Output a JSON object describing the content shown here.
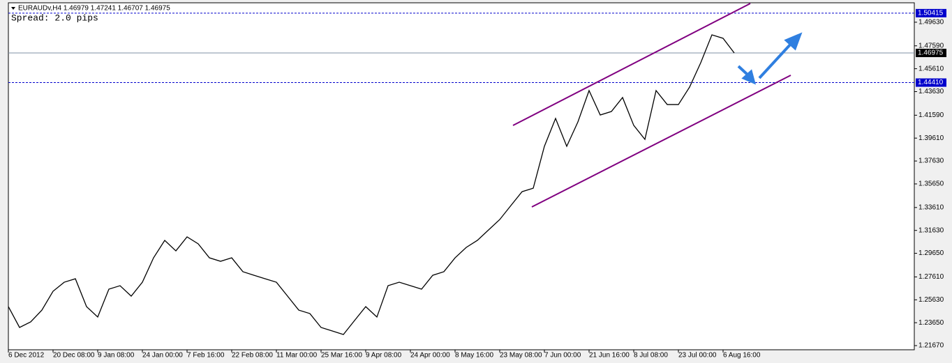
{
  "chart_data": {
    "type": "line",
    "title": "EURAUDv,H4  1.46979 1.47241 1.46707 1.46975",
    "subtitle": "Spread: 2.0 pips",
    "categories": [
      "6 Dec 2012",
      null,
      null,
      null,
      "20 Dec 08:00",
      null,
      null,
      null,
      "9 Jan 08:00",
      null,
      null,
      null,
      "24 Jan 00:00",
      null,
      null,
      null,
      "7 Feb 16:00",
      null,
      null,
      null,
      "22 Feb 08:00",
      null,
      null,
      null,
      "11 Mar 00:00",
      null,
      null,
      null,
      "25 Mar 16:00",
      null,
      null,
      null,
      "9 Apr 08:00",
      null,
      null,
      null,
      "24 Apr 00:00",
      null,
      null,
      null,
      "8 May 16:00",
      null,
      null,
      null,
      "23 May 08:00",
      null,
      null,
      null,
      "7 Jun 00:00",
      null,
      null,
      null,
      "21 Jun 16:00",
      null,
      null,
      null,
      "8 Jul 08:00",
      null,
      null,
      null,
      "23 Jul 00:00",
      null,
      null,
      null,
      "6 Aug 16:00",
      null
    ],
    "values": [
      1.2504,
      1.2324,
      1.2372,
      1.2474,
      1.2637,
      1.2715,
      1.2745,
      1.2504,
      1.2414,
      1.2655,
      1.2685,
      1.2595,
      1.2715,
      1.2926,
      1.3077,
      1.2986,
      1.3107,
      1.3047,
      1.2926,
      1.2896,
      1.2926,
      1.2806,
      1.2775,
      1.2745,
      1.2715,
      1.2595,
      1.2474,
      1.2444,
      1.2324,
      1.2294,
      1.2263,
      1.2384,
      1.2504,
      1.2414,
      1.2685,
      1.2715,
      1.2685,
      1.2655,
      1.2775,
      1.2806,
      1.2926,
      1.3016,
      1.3077,
      1.3167,
      1.3257,
      1.3378,
      1.3498,
      1.3528,
      1.389,
      1.4131,
      1.389,
      1.4101,
      1.4372,
      1.4161,
      1.4191,
      1.4312,
      1.4071,
      1.395,
      1.4372,
      1.4251,
      1.4251,
      1.4402,
      1.4613,
      1.4854,
      1.4824,
      1.46975
    ],
    "color": "#000000",
    "ylim": [
      1.2113,
      1.5125
    ],
    "yticks": [
      {
        "value": 1.4963,
        "label": "1.49630"
      },
      {
        "value": 1.4759,
        "label": "1.47590"
      },
      {
        "value": 1.4561,
        "label": "1.45610"
      },
      {
        "value": 1.4363,
        "label": "1.43630"
      },
      {
        "value": 1.4159,
        "label": "1.41590"
      },
      {
        "value": 1.3961,
        "label": "1.39610"
      },
      {
        "value": 1.3763,
        "label": "1.37630"
      },
      {
        "value": 1.3565,
        "label": "1.35650"
      },
      {
        "value": 1.3361,
        "label": "1.33610"
      },
      {
        "value": 1.3163,
        "label": "1.31630"
      },
      {
        "value": 1.2965,
        "label": "1.29650"
      },
      {
        "value": 1.2761,
        "label": "1.27610"
      },
      {
        "value": 1.2563,
        "label": "1.25630"
      },
      {
        "value": 1.2365,
        "label": "1.23650"
      },
      {
        "value": 1.2167,
        "label": "1.21670"
      }
    ],
    "levels": [
      {
        "value": 1.50415,
        "label": "1.50415"
      },
      {
        "value": 1.4441,
        "label": "1.44410"
      }
    ],
    "level_color": "#0000cc",
    "bid": {
      "value": 1.46975,
      "label": "1.46975"
    },
    "bid_color": "#7f8fa6"
  }
}
